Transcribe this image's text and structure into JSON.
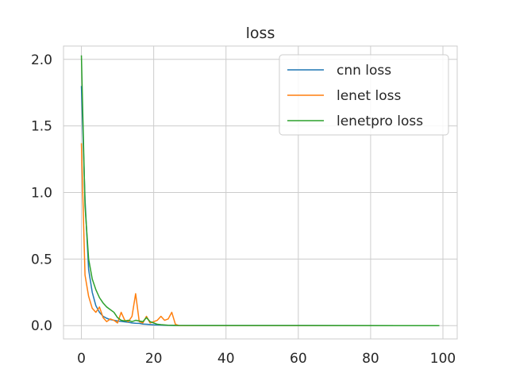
{
  "chart_data": {
    "type": "line",
    "title": "loss",
    "xlabel": "",
    "ylabel": "",
    "xlim": [
      -4.95,
      103.95
    ],
    "ylim": [
      -0.1,
      2.1
    ],
    "xticks": [
      0,
      20,
      40,
      60,
      80,
      100
    ],
    "yticks": [
      0.0,
      0.5,
      1.0,
      1.5,
      2.0
    ],
    "xtick_labels": [
      "0",
      "20",
      "40",
      "60",
      "80",
      "100"
    ],
    "ytick_labels": [
      "0.0",
      "0.5",
      "1.0",
      "1.5",
      "2.0"
    ],
    "grid": true,
    "legend_position": "top-right",
    "series": [
      {
        "name": "cnn loss",
        "color": "#1f77b4",
        "x": [
          0,
          1,
          2,
          3,
          4,
          5,
          6,
          7,
          8,
          9,
          10,
          11,
          12,
          13,
          14,
          15,
          16,
          17,
          18,
          19,
          20,
          21,
          22,
          23,
          24,
          25,
          26,
          99
        ],
        "y": [
          1.8,
          0.95,
          0.42,
          0.25,
          0.15,
          0.1,
          0.07,
          0.055,
          0.045,
          0.04,
          0.035,
          0.032,
          0.028,
          0.025,
          0.02,
          0.018,
          0.017,
          0.012,
          0.01,
          0.008,
          0.006,
          0.005,
          0.004,
          0.003,
          0.002,
          0.002,
          0.001,
          0.0
        ]
      },
      {
        "name": "lenet loss",
        "color": "#ff7f0e",
        "x": [
          0,
          1,
          2,
          3,
          4,
          5,
          6,
          7,
          8,
          9,
          10,
          11,
          12,
          13,
          14,
          15,
          16,
          17,
          18,
          19,
          20,
          21,
          22,
          23,
          24,
          25,
          26,
          27,
          99
        ],
        "y": [
          1.37,
          0.38,
          0.22,
          0.13,
          0.1,
          0.14,
          0.06,
          0.03,
          0.05,
          0.04,
          0.02,
          0.1,
          0.04,
          0.03,
          0.07,
          0.24,
          0.03,
          0.02,
          0.07,
          0.02,
          0.03,
          0.04,
          0.07,
          0.04,
          0.05,
          0.1,
          0.01,
          0.0,
          0.0
        ]
      },
      {
        "name": "lenetpro loss",
        "color": "#2ca02c",
        "x": [
          0,
          1,
          2,
          3,
          4,
          5,
          6,
          7,
          8,
          9,
          10,
          11,
          12,
          13,
          14,
          15,
          16,
          17,
          18,
          19,
          20,
          21,
          22,
          23,
          24,
          25,
          26,
          99
        ],
        "y": [
          2.03,
          0.9,
          0.5,
          0.35,
          0.27,
          0.21,
          0.17,
          0.14,
          0.12,
          0.1,
          0.06,
          0.04,
          0.035,
          0.04,
          0.03,
          0.04,
          0.035,
          0.03,
          0.06,
          0.03,
          0.02,
          0.01,
          0.007,
          0.005,
          0.003,
          0.002,
          0.001,
          0.0
        ]
      }
    ]
  }
}
